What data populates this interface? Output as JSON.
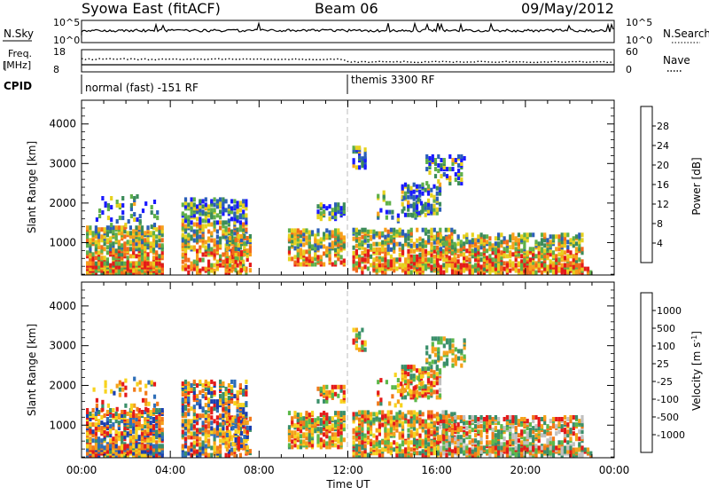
{
  "header": {
    "station": "Syowa East (fitACF)",
    "beam": "Beam 06",
    "date": "09/May/2012"
  },
  "side_labels": {
    "nsky": "N.Sky",
    "freq": "Freq.",
    "freq_unit": "[MHz]",
    "cpid": "CPID",
    "nsearch": "N.Search",
    "nave": "Nave"
  },
  "top_ticks": {
    "nsky_left_top": "10^5",
    "nsky_left_bottom": "10^0",
    "nsky_right_top": "10^5",
    "nsky_right_bottom": "10^0",
    "freq_left_top": "18",
    "freq_left_bottom": "8",
    "nave_right_top": "60",
    "nave_right_bottom": "0"
  },
  "cpid_segments": [
    {
      "label": "normal (fast) -151 RF",
      "start_hour": 0
    },
    {
      "label": "themis 3300 RF",
      "start_hour": 12
    }
  ],
  "x_axis_label": "Time UT",
  "colorbars": {
    "power": {
      "label": "Power [dB]",
      "ticks": [
        "4",
        "8",
        "12",
        "16",
        "20",
        "24",
        "28"
      ],
      "colors": [
        "#1a1aff",
        "#2b5fb8",
        "#3c8c5a",
        "#5fb04a",
        "#e6d21e",
        "#f7a11b",
        "#f26a1a",
        "#e41a1a"
      ]
    },
    "velocity": {
      "label": "Velocity [m s",
      "label_sup": "-1",
      "label_end": "]",
      "ticks": [
        "1000",
        "500",
        "100",
        "25",
        "-25",
        "-100",
        "-500",
        "-1000"
      ],
      "colors": [
        "#1a3fb0",
        "#2f6fb8",
        "#3a8f6a",
        "#5cb84a",
        "#c0c0c0",
        "#f7d31e",
        "#f5a21a",
        "#f27a1a",
        "#e41a1a"
      ]
    }
  },
  "chart_data": [
    {
      "type": "heatmap",
      "name": "Power [dB]",
      "xlabel": "Time UT",
      "ylabel": "Slant Range [km]",
      "x_ticks": [
        "00:00",
        "04:00",
        "08:00",
        "12:00",
        "16:00",
        "20:00",
        "00:00"
      ],
      "x_range_hours": [
        0,
        24
      ],
      "y_ticks": [
        1000,
        2000,
        3000,
        4000
      ],
      "ylim": [
        180,
        4600
      ],
      "clim": [
        0,
        30
      ]
    },
    {
      "type": "heatmap",
      "name": "Velocity [m s-1]",
      "xlabel": "Time UT",
      "ylabel": "Slant Range [km]",
      "x_ticks": [
        "00:00",
        "04:00",
        "08:00",
        "12:00",
        "16:00",
        "20:00",
        "00:00"
      ],
      "x_range_hours": [
        0,
        24
      ],
      "y_ticks": [
        1000,
        2000,
        3000,
        4000
      ],
      "ylim": [
        180,
        4600
      ],
      "clim": [
        -1000,
        1000
      ]
    }
  ]
}
